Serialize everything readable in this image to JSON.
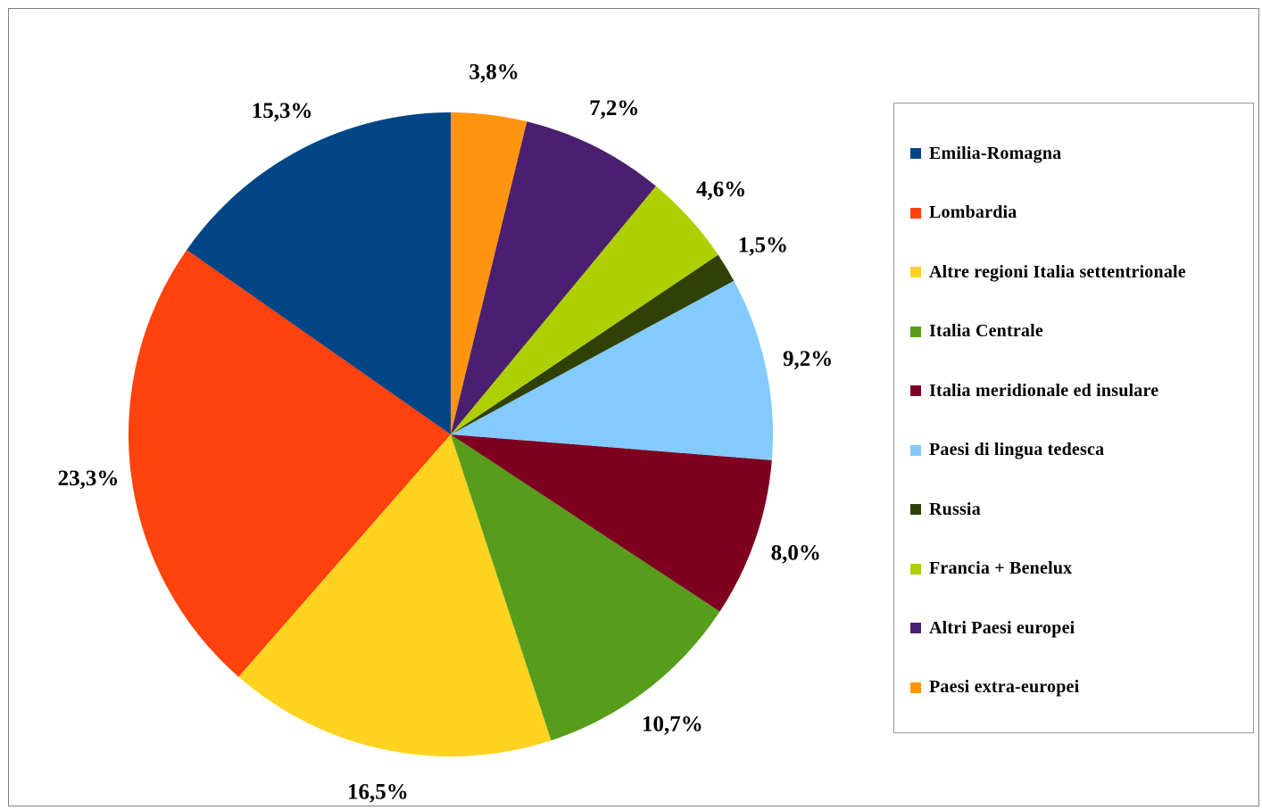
{
  "chart_data": {
    "type": "pie",
    "categories": [
      "Emilia-Romagna",
      "Lombardia",
      "Altre regioni Italia settentrionale",
      "Italia Centrale",
      "Italia meridionale ed insulare",
      "Paesi di lingua tedesca",
      "Russia",
      "Francia + Benelux",
      "Altri Paesi europei",
      "Paesi extra-europei"
    ],
    "values": [
      15.3,
      23.3,
      16.5,
      10.7,
      8.0,
      9.2,
      1.5,
      4.6,
      7.2,
      3.8
    ],
    "labels": [
      "15,3%",
      "23,3%",
      "16,5%",
      "10,7%",
      "8,0%",
      "9,2%",
      "1,5%",
      "4,6%",
      "7,2%",
      "3,8%"
    ],
    "colors": [
      "#004586",
      "#ff420e",
      "#ffd320",
      "#579d1c",
      "#7e0021",
      "#83caff",
      "#314004",
      "#aecf00",
      "#4b1f6f",
      "#ff950e"
    ],
    "direction": "counter-clockwise from top",
    "legend_position": "right",
    "title": ""
  }
}
